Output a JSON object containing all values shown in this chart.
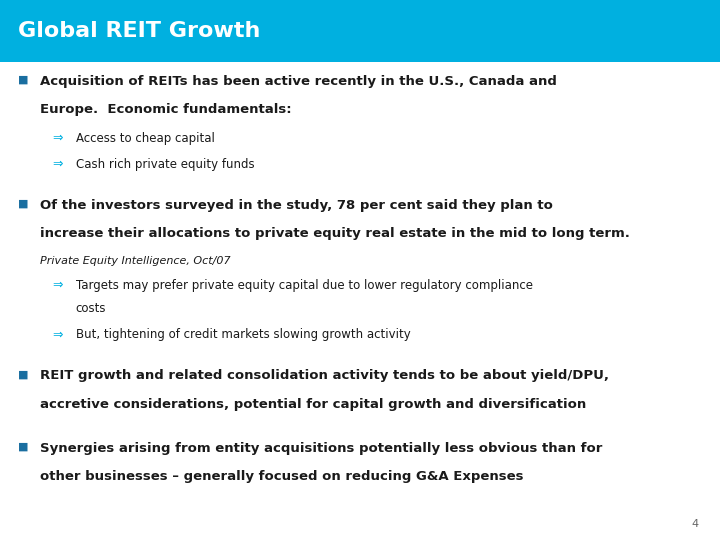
{
  "title": "Global REIT Growth",
  "title_color": "#ffffff",
  "title_bg_color": "#00b0e0",
  "title_fontsize": 16,
  "body_bg_color": "#ffffff",
  "bullet_color": "#1a6ea0",
  "arrow_color": "#00b0e0",
  "body_text_color": "#1a1a1a",
  "page_number": "4",
  "bullets": [
    {
      "text": "Acquisition of REITs has been active recently in the U.S., Canada and\nEurope.  Economic fundamentals:",
      "bold": true,
      "sub_bullets": [
        {
          "text": "Access to cheap capital"
        },
        {
          "text": "Cash rich private equity funds"
        }
      ]
    },
    {
      "text": "Of the investors surveyed in the study, 78 per cent said they plan to\nincrease their allocations to private equity real estate in the mid to long term.",
      "bold": true,
      "source": "Private Equity Intelligence, Oct/07",
      "sub_bullets": [
        {
          "text": "Targets may prefer private equity capital due to lower regulatory compliance\ncosts"
        },
        {
          "text": "But, tightening of credit markets slowing growth activity"
        }
      ]
    },
    {
      "text": "REIT growth and related consolidation activity tends to be about yield/DPU,\naccretive considerations, potential for capital growth and diversification",
      "bold": true,
      "sub_bullets": []
    },
    {
      "text": "Synergies arising from entity acquisitions potentially less obvious than for\nother businesses – generally focused on reducing G&A Expenses",
      "bold": true,
      "sub_bullets": []
    }
  ]
}
